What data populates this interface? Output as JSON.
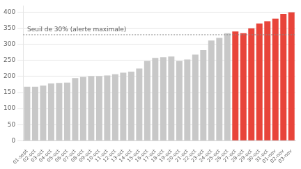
{
  "chart_data": {
    "type": "bar",
    "categories": [
      "01-sept",
      "02-oct",
      "03-oct",
      "04-oct",
      "05-oct",
      "06-oct",
      "07-oct",
      "08-oct",
      "09-oct",
      "10-oct",
      "11-oct",
      "12-oct",
      "13-oct",
      "14-oct",
      "15-oct",
      "16-oct",
      "17-oct",
      "18-oct",
      "19-oct",
      "20-oct",
      "21-oct",
      "22-oct",
      "23-oct",
      "24-oct",
      "25-oct",
      "26-oct",
      "27-oct",
      "28-oct",
      "29-oct",
      "30-oct",
      "31-oct",
      "01-nov",
      "02-nov",
      "03-nov"
    ],
    "values": [
      168,
      168,
      172,
      178,
      180,
      181,
      195,
      198,
      201,
      201,
      203,
      207,
      212,
      215,
      225,
      248,
      258,
      260,
      262,
      248,
      253,
      268,
      282,
      312,
      320,
      335,
      340,
      335,
      350,
      365,
      372,
      380,
      395,
      400
    ],
    "colors": [
      "#c8c8c8",
      "#c8c8c8",
      "#c8c8c8",
      "#c8c8c8",
      "#c8c8c8",
      "#c8c8c8",
      "#c8c8c8",
      "#c8c8c8",
      "#c8c8c8",
      "#c8c8c8",
      "#c8c8c8",
      "#c8c8c8",
      "#c8c8c8",
      "#c8c8c8",
      "#c8c8c8",
      "#c8c8c8",
      "#c8c8c8",
      "#c8c8c8",
      "#c8c8c8",
      "#c8c8c8",
      "#c8c8c8",
      "#c8c8c8",
      "#c8c8c8",
      "#c8c8c8",
      "#c8c8c8",
      "#c8c8c8",
      "#e8443a",
      "#e8443a",
      "#e8443a",
      "#e8443a",
      "#e8443a",
      "#e8443a",
      "#e8443a",
      "#e8443a"
    ],
    "threshold": 330,
    "threshold_label": "Seuil de 30% (alerte maximale)",
    "ylim": [
      0,
      420
    ],
    "yticks": [
      0,
      50,
      100,
      150,
      200,
      250,
      300,
      350,
      400
    ],
    "grid": true
  }
}
